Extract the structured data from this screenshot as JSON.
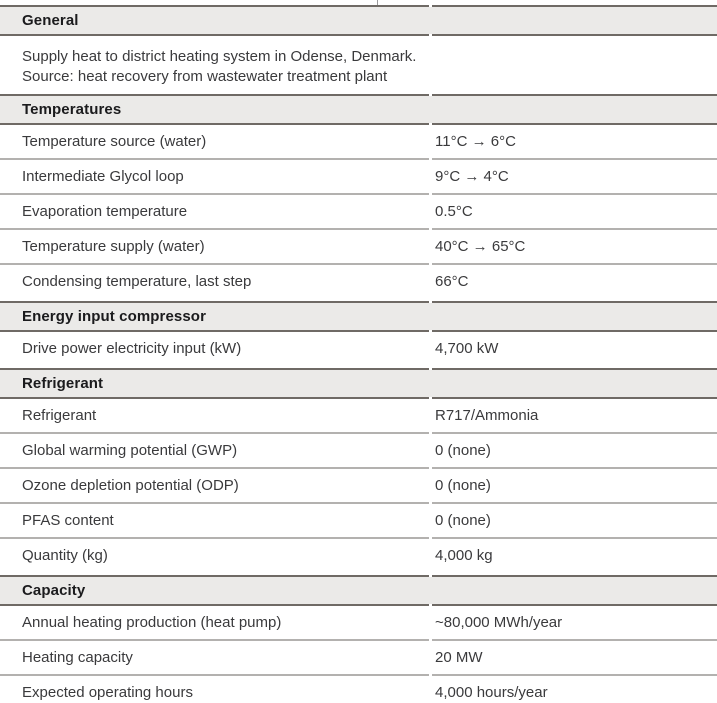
{
  "table": {
    "sections": [
      {
        "title": "General",
        "description_lines": [
          "Supply heat to district heating system in Odense, Denmark.",
          "Source: heat recovery from wastewater treatment plant"
        ],
        "rows": []
      },
      {
        "title": "Temperatures",
        "rows": [
          {
            "label": "Temperature source (water)",
            "value": "11°C → 6°C"
          },
          {
            "label": "Intermediate Glycol loop",
            "value": "9°C → 4°C"
          },
          {
            "label": "Evaporation temperature",
            "value": "0.5°C"
          },
          {
            "label": "Temperature supply (water)",
            "value": "40°C → 65°C"
          },
          {
            "label": "Condensing temperature, last step",
            "value": "66°C"
          }
        ]
      },
      {
        "title": "Energy input compressor",
        "rows": [
          {
            "label": "Drive power electricity input (kW)",
            "value": "4,700 kW"
          }
        ]
      },
      {
        "title": "Refrigerant",
        "rows": [
          {
            "label": "Refrigerant",
            "value": "R717/Ammonia"
          },
          {
            "label": "Global warming potential (GWP)",
            "value": "0 (none)"
          },
          {
            "label": "Ozone depletion potential (ODP)",
            "value": "0 (none)"
          },
          {
            "label": "PFAS content",
            "value": "0 (none)"
          },
          {
            "label": "Quantity (kg)",
            "value": "4,000 kg"
          }
        ]
      },
      {
        "title": "Capacity",
        "rows": [
          {
            "label": "Annual heating production (heat pump)",
            "value": "~80,000 MWh/year"
          },
          {
            "label": "Heating capacity",
            "value": "20 MW"
          },
          {
            "label": "Expected operating hours",
            "value": "4,000 hours/year"
          }
        ]
      }
    ]
  },
  "colors": {
    "band-bg": "#ebeae8",
    "rule-dark": "#6f6a65",
    "rule-light": "#b3b1af",
    "text": "#3a3a3c",
    "title-text": "#1b1b1d",
    "remnant-tick": "#9a9a9c"
  }
}
